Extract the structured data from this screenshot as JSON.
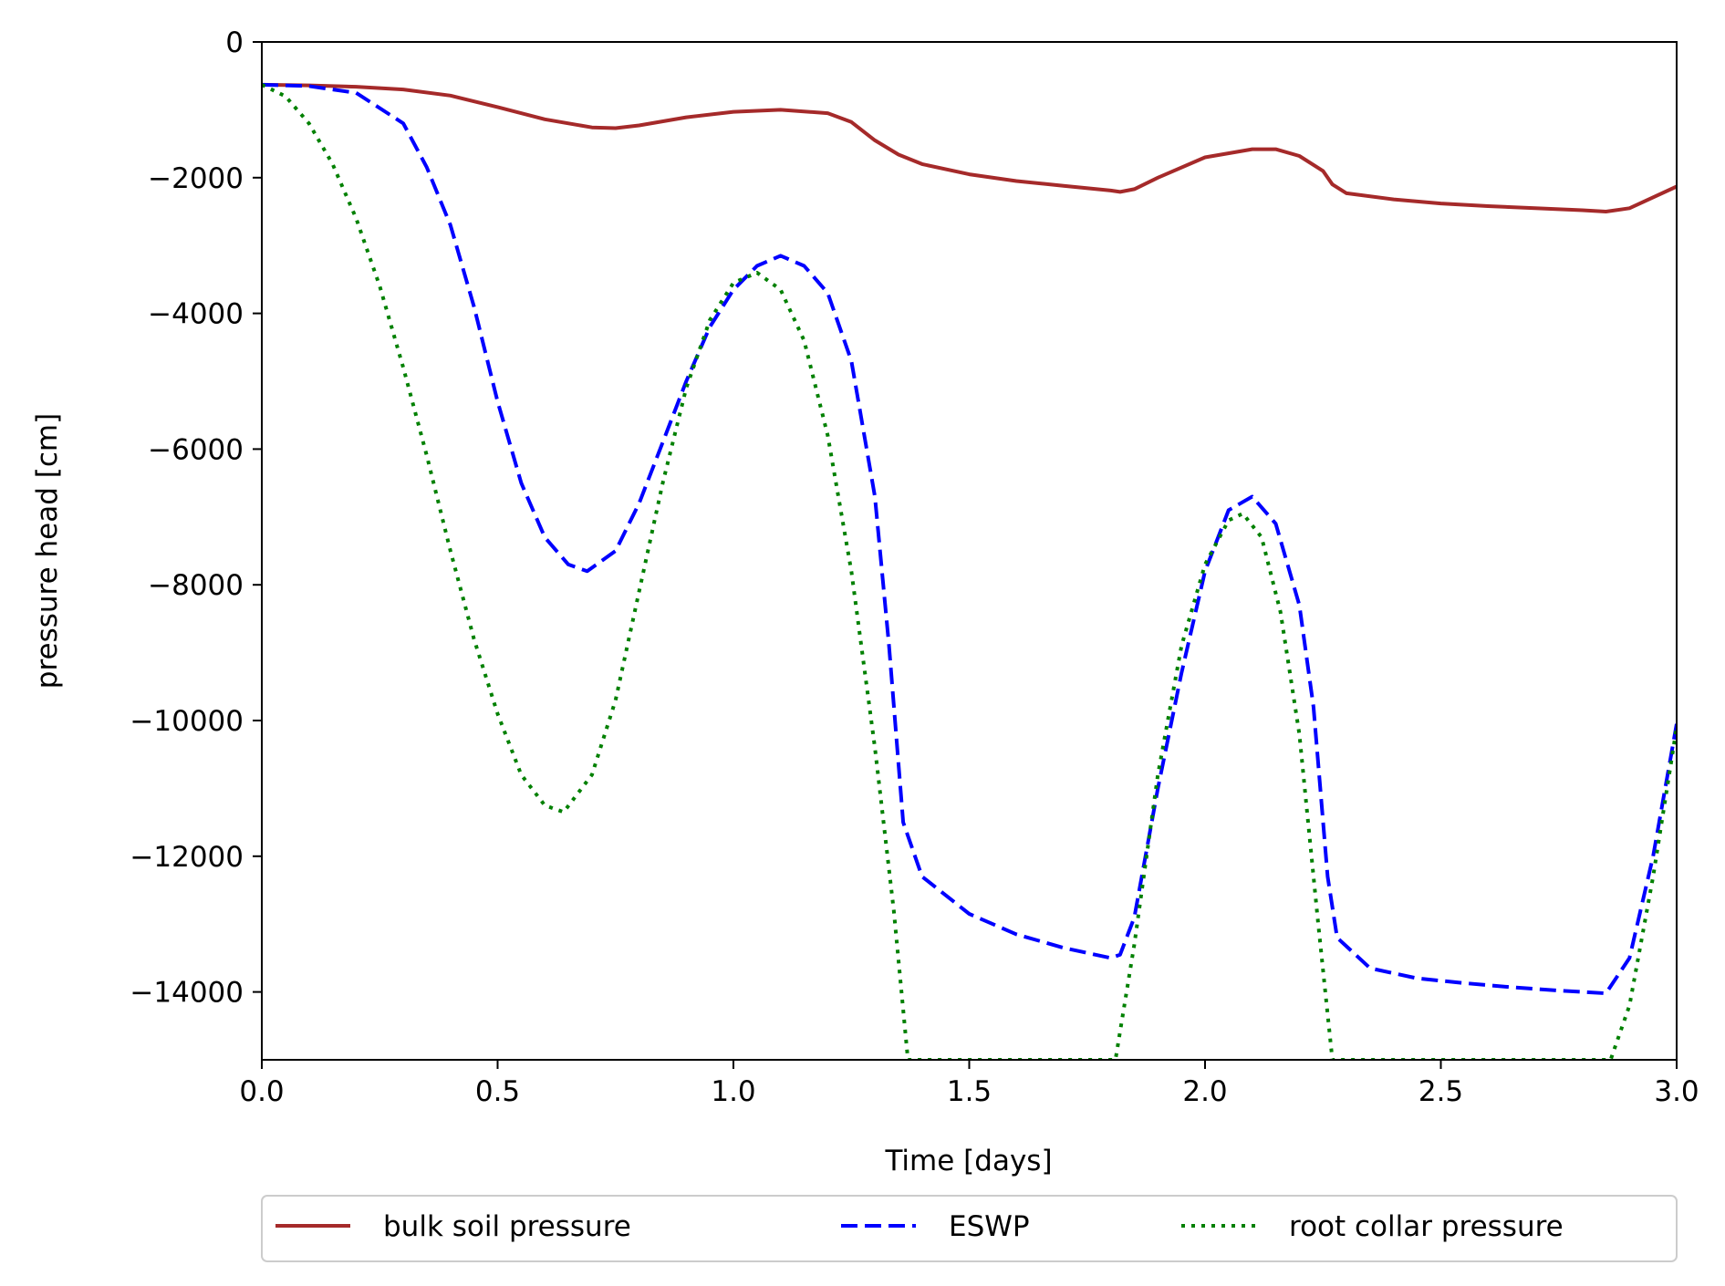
{
  "chart_data": {
    "type": "line",
    "title": "",
    "xlabel": "Time [days]",
    "ylabel": "pressure head [cm]",
    "xlim": [
      0.0,
      3.0
    ],
    "ylim": [
      -15000,
      0
    ],
    "xticks": [
      0.0,
      0.5,
      1.0,
      1.5,
      2.0,
      2.5,
      3.0
    ],
    "xtick_labels": [
      "0.0",
      "0.5",
      "1.0",
      "1.5",
      "2.0",
      "2.5",
      "3.0"
    ],
    "yticks": [
      0,
      -2000,
      -4000,
      -6000,
      -8000,
      -10000,
      -12000,
      -14000
    ],
    "ytick_labels": [
      "0",
      "−2000",
      "−4000",
      "−6000",
      "−8000",
      "−10000",
      "−12000",
      "−14000"
    ],
    "grid": false,
    "legend_position": "bottom-center, below axes",
    "series": [
      {
        "name": "bulk soil pressure",
        "color": "#a52a2a",
        "style": "solid",
        "points": [
          [
            0.0,
            -630
          ],
          [
            0.1,
            -640
          ],
          [
            0.2,
            -660
          ],
          [
            0.3,
            -700
          ],
          [
            0.4,
            -790
          ],
          [
            0.5,
            -960
          ],
          [
            0.6,
            -1140
          ],
          [
            0.7,
            -1260
          ],
          [
            0.75,
            -1270
          ],
          [
            0.8,
            -1230
          ],
          [
            0.9,
            -1110
          ],
          [
            1.0,
            -1030
          ],
          [
            1.1,
            -1000
          ],
          [
            1.2,
            -1050
          ],
          [
            1.25,
            -1180
          ],
          [
            1.3,
            -1450
          ],
          [
            1.35,
            -1660
          ],
          [
            1.4,
            -1800
          ],
          [
            1.5,
            -1950
          ],
          [
            1.6,
            -2050
          ],
          [
            1.7,
            -2120
          ],
          [
            1.8,
            -2190
          ],
          [
            1.82,
            -2210
          ],
          [
            1.85,
            -2170
          ],
          [
            1.9,
            -2000
          ],
          [
            2.0,
            -1700
          ],
          [
            2.1,
            -1580
          ],
          [
            2.15,
            -1580
          ],
          [
            2.2,
            -1680
          ],
          [
            2.25,
            -1900
          ],
          [
            2.27,
            -2100
          ],
          [
            2.3,
            -2230
          ],
          [
            2.4,
            -2320
          ],
          [
            2.5,
            -2380
          ],
          [
            2.6,
            -2420
          ],
          [
            2.7,
            -2450
          ],
          [
            2.8,
            -2480
          ],
          [
            2.85,
            -2500
          ],
          [
            2.9,
            -2450
          ],
          [
            3.0,
            -2130
          ]
        ]
      },
      {
        "name": "ESWP",
        "color": "#0000ff",
        "style": "dashed",
        "points": [
          [
            0.0,
            -630
          ],
          [
            0.1,
            -650
          ],
          [
            0.2,
            -750
          ],
          [
            0.3,
            -1200
          ],
          [
            0.35,
            -1850
          ],
          [
            0.4,
            -2700
          ],
          [
            0.45,
            -3900
          ],
          [
            0.5,
            -5300
          ],
          [
            0.55,
            -6500
          ],
          [
            0.6,
            -7300
          ],
          [
            0.65,
            -7700
          ],
          [
            0.69,
            -7800
          ],
          [
            0.75,
            -7500
          ],
          [
            0.8,
            -6800
          ],
          [
            0.85,
            -5900
          ],
          [
            0.9,
            -5000
          ],
          [
            0.95,
            -4200
          ],
          [
            1.0,
            -3650
          ],
          [
            1.05,
            -3300
          ],
          [
            1.1,
            -3150
          ],
          [
            1.15,
            -3300
          ],
          [
            1.2,
            -3700
          ],
          [
            1.25,
            -4700
          ],
          [
            1.3,
            -6700
          ],
          [
            1.33,
            -8900
          ],
          [
            1.36,
            -11500
          ],
          [
            1.4,
            -12300
          ],
          [
            1.5,
            -12850
          ],
          [
            1.6,
            -13150
          ],
          [
            1.7,
            -13350
          ],
          [
            1.8,
            -13500
          ],
          [
            1.82,
            -13450
          ],
          [
            1.85,
            -12900
          ],
          [
            1.9,
            -11000
          ],
          [
            1.95,
            -9300
          ],
          [
            2.0,
            -7800
          ],
          [
            2.05,
            -6900
          ],
          [
            2.1,
            -6700
          ],
          [
            2.15,
            -7100
          ],
          [
            2.2,
            -8300
          ],
          [
            2.23,
            -9800
          ],
          [
            2.26,
            -12300
          ],
          [
            2.28,
            -13200
          ],
          [
            2.35,
            -13650
          ],
          [
            2.45,
            -13800
          ],
          [
            2.55,
            -13870
          ],
          [
            2.65,
            -13930
          ],
          [
            2.75,
            -13980
          ],
          [
            2.85,
            -14020
          ],
          [
            2.9,
            -13500
          ],
          [
            2.95,
            -12000
          ],
          [
            3.0,
            -10050
          ]
        ]
      },
      {
        "name": "root collar pressure",
        "color": "#008000",
        "style": "dotted",
        "points": [
          [
            0.0,
            -630
          ],
          [
            0.05,
            -800
          ],
          [
            0.1,
            -1200
          ],
          [
            0.15,
            -1800
          ],
          [
            0.2,
            -2600
          ],
          [
            0.25,
            -3600
          ],
          [
            0.3,
            -4800
          ],
          [
            0.35,
            -6100
          ],
          [
            0.4,
            -7500
          ],
          [
            0.45,
            -8800
          ],
          [
            0.5,
            -9900
          ],
          [
            0.55,
            -10800
          ],
          [
            0.6,
            -11250
          ],
          [
            0.64,
            -11350
          ],
          [
            0.7,
            -10800
          ],
          [
            0.75,
            -9700
          ],
          [
            0.8,
            -8100
          ],
          [
            0.85,
            -6500
          ],
          [
            0.9,
            -5100
          ],
          [
            0.95,
            -4100
          ],
          [
            1.0,
            -3550
          ],
          [
            1.05,
            -3400
          ],
          [
            1.1,
            -3650
          ],
          [
            1.15,
            -4400
          ],
          [
            1.2,
            -5800
          ],
          [
            1.25,
            -7800
          ],
          [
            1.3,
            -10400
          ],
          [
            1.34,
            -12800
          ],
          [
            1.37,
            -15000
          ],
          [
            1.5,
            -15000
          ],
          [
            1.6,
            -15000
          ],
          [
            1.7,
            -15000
          ],
          [
            1.81,
            -15000
          ],
          [
            1.85,
            -13300
          ],
          [
            1.9,
            -10800
          ],
          [
            1.95,
            -8900
          ],
          [
            2.0,
            -7700
          ],
          [
            2.05,
            -7050
          ],
          [
            2.08,
            -6950
          ],
          [
            2.12,
            -7300
          ],
          [
            2.16,
            -8400
          ],
          [
            2.2,
            -10200
          ],
          [
            2.24,
            -13000
          ],
          [
            2.27,
            -15000
          ],
          [
            2.5,
            -15000
          ],
          [
            2.86,
            -15000
          ],
          [
            2.9,
            -14200
          ],
          [
            2.95,
            -12300
          ],
          [
            3.0,
            -10100
          ]
        ]
      }
    ],
    "legend": {
      "entries": [
        "bulk soil pressure",
        "ESWP",
        "root collar pressure"
      ]
    }
  }
}
